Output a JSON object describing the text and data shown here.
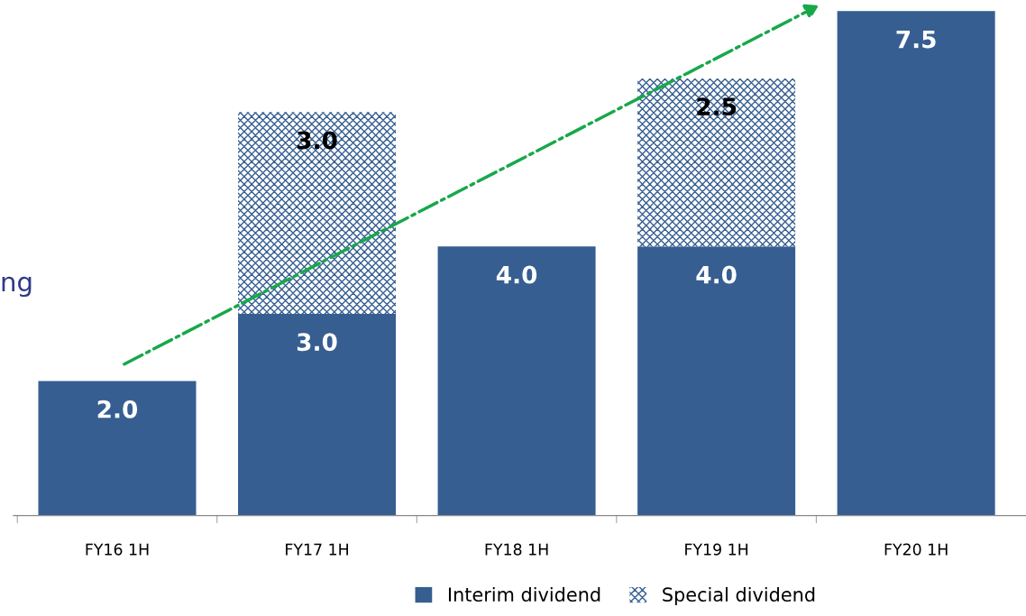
{
  "chart_data": {
    "type": "bar",
    "stacked": true,
    "categories": [
      "FY16 1H",
      "FY17 1H",
      "FY18 1H",
      "FY19 1H",
      "FY20 1H"
    ],
    "series": [
      {
        "name": "Interim dividend",
        "color": "#365e91",
        "values": [
          2.0,
          3.0,
          4.0,
          4.0,
          7.5
        ],
        "value_labels": [
          "2.0",
          "3.0",
          "4.0",
          "4.0",
          "7.5"
        ]
      },
      {
        "name": "Special dividend",
        "color": "#365e91",
        "values": [
          null,
          3.0,
          null,
          2.5,
          null
        ],
        "value_labels": [
          null,
          "3.0",
          null,
          "2.5",
          null
        ]
      }
    ],
    "tick_labels": "x",
    "grid": false,
    "legend": "bottom",
    "annotations": [
      "ng"
    ]
  }
}
